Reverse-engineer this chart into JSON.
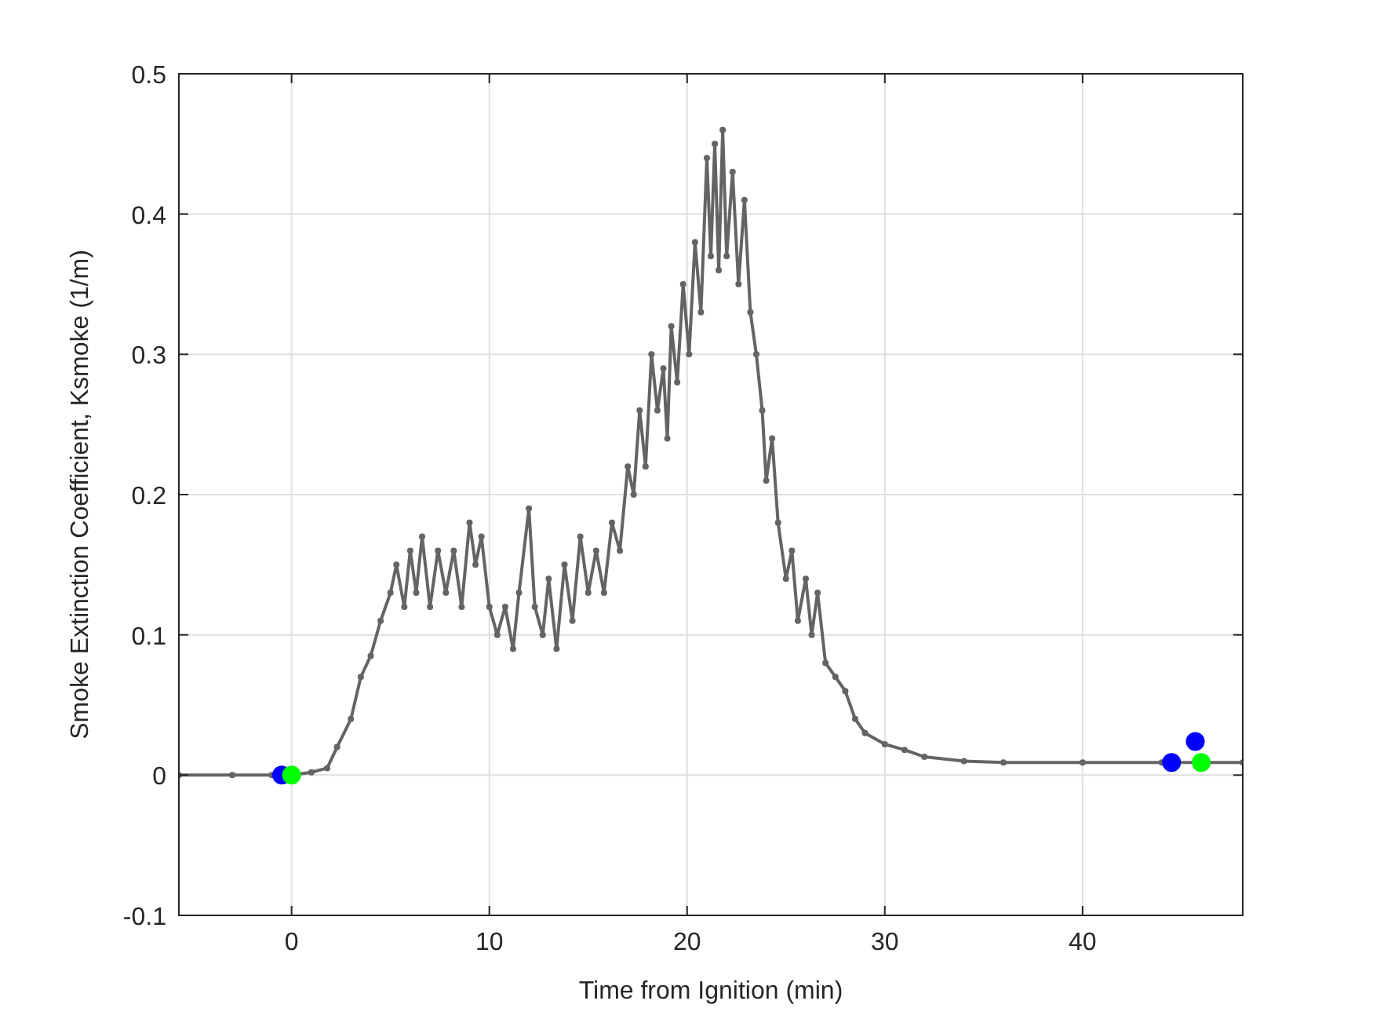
{
  "chart_data": {
    "type": "line",
    "xlabel": "Time from Ignition (min)",
    "ylabel": "Smoke Extinction Coefficient, Ksmoke (1/m)",
    "xlim": [
      -5.7,
      48.1
    ],
    "xticks": [
      0,
      10,
      20,
      30,
      40
    ],
    "ylim": [
      -0.1,
      0.5
    ],
    "yticks": [
      -0.1,
      0,
      0.1,
      0.2,
      0.3,
      0.4,
      0.5
    ],
    "grid": true,
    "series": [
      {
        "color": "#646464",
        "marker": "circle",
        "line_style": "solid",
        "x": [
          -5.7,
          -3,
          -1,
          0,
          1,
          1.8,
          2.3,
          3,
          3.5,
          4,
          4.5,
          5,
          5.3,
          5.7,
          6,
          6.3,
          6.6,
          7,
          7.4,
          7.8,
          8.2,
          8.6,
          9,
          9.3,
          9.6,
          10,
          10.4,
          10.8,
          11.2,
          11.5,
          12,
          12.3,
          12.7,
          13,
          13.4,
          13.8,
          14.2,
          14.6,
          15,
          15.4,
          15.8,
          16.2,
          16.6,
          17,
          17.3,
          17.6,
          17.9,
          18.2,
          18.5,
          18.8,
          19,
          19.2,
          19.5,
          19.8,
          20.1,
          20.4,
          20.7,
          21,
          21.2,
          21.4,
          21.6,
          21.8,
          22,
          22.3,
          22.6,
          22.9,
          23.2,
          23.5,
          23.8,
          24,
          24.3,
          24.6,
          25,
          25.3,
          25.6,
          26,
          26.3,
          26.6,
          27,
          27.5,
          28,
          28.5,
          29,
          30,
          31,
          32,
          34,
          36,
          40,
          44,
          48.1
        ],
        "values": [
          0,
          0,
          0,
          0,
          0.002,
          0.005,
          0.02,
          0.04,
          0.07,
          0.085,
          0.11,
          0.13,
          0.15,
          0.12,
          0.16,
          0.13,
          0.17,
          0.12,
          0.16,
          0.13,
          0.16,
          0.12,
          0.18,
          0.15,
          0.17,
          0.12,
          0.1,
          0.12,
          0.09,
          0.13,
          0.19,
          0.12,
          0.1,
          0.14,
          0.09,
          0.15,
          0.11,
          0.17,
          0.13,
          0.16,
          0.13,
          0.18,
          0.16,
          0.22,
          0.2,
          0.26,
          0.22,
          0.3,
          0.26,
          0.29,
          0.24,
          0.32,
          0.28,
          0.35,
          0.3,
          0.38,
          0.33,
          0.44,
          0.37,
          0.45,
          0.36,
          0.46,
          0.37,
          0.43,
          0.35,
          0.41,
          0.33,
          0.3,
          0.26,
          0.21,
          0.24,
          0.18,
          0.14,
          0.16,
          0.11,
          0.14,
          0.1,
          0.13,
          0.08,
          0.07,
          0.06,
          0.04,
          0.03,
          0.022,
          0.018,
          0.013,
          0.01,
          0.009,
          0.009,
          0.009,
          0.009
        ]
      },
      {
        "type": "scatter",
        "color": "#0000ff",
        "marker": "circle",
        "x": [
          -0.5,
          44.5,
          45.7
        ],
        "values": [
          0,
          0.009,
          0.024
        ]
      },
      {
        "type": "scatter",
        "color": "#00ff00",
        "marker": "circle",
        "x": [
          0,
          46
        ],
        "values": [
          0,
          0.009
        ]
      }
    ]
  }
}
